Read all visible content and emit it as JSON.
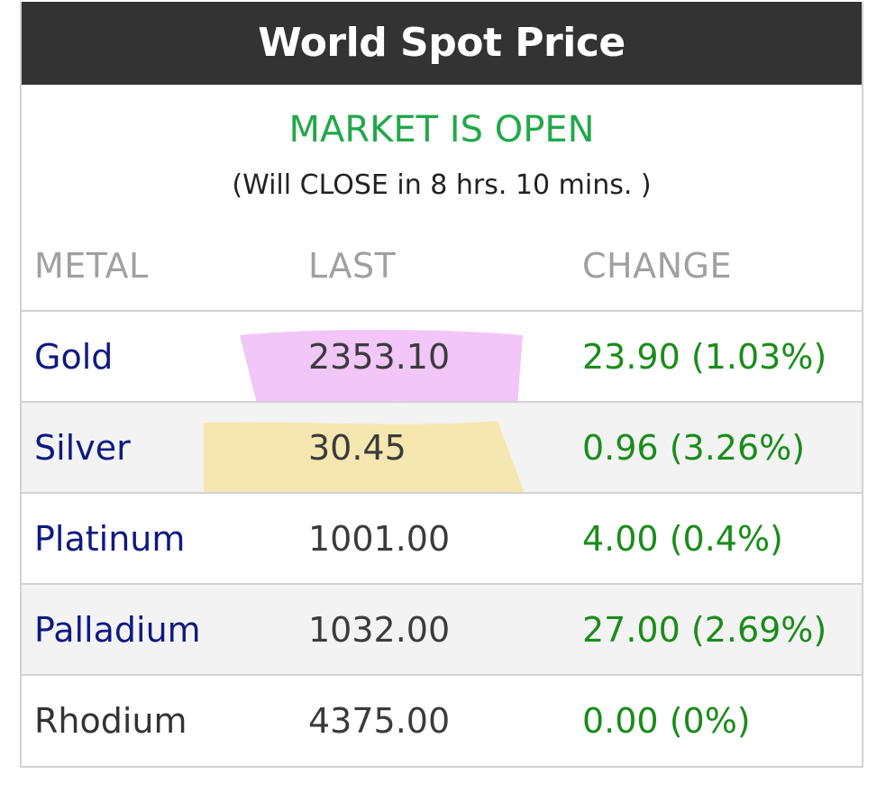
{
  "widget": {
    "title": "World Spot Price",
    "market_status": "MARKET IS OPEN",
    "close_note": "(Will CLOSE in 8 hrs. 10 mins. )",
    "status_color": "#22a84a"
  },
  "table": {
    "headers": {
      "metal": "METAL",
      "last": "LAST",
      "change": "CHANGE"
    },
    "rows": [
      {
        "metal": "Gold",
        "last": "2353.10",
        "change": "23.90 (1.03%)",
        "link": true
      },
      {
        "metal": "Silver",
        "last": "30.45",
        "change": "0.96 (3.26%)",
        "link": true
      },
      {
        "metal": "Platinum",
        "last": "1001.00",
        "change": "4.00 (0.4%)",
        "link": true
      },
      {
        "metal": "Palladium",
        "last": "1032.00",
        "change": "27.00 (2.69%)",
        "link": true
      },
      {
        "metal": "Rhodium",
        "last": "4375.00",
        "change": "0.00 (0%)",
        "link": false
      }
    ]
  },
  "highlights": [
    {
      "target": "gold-last",
      "color": "#f2c6f8"
    },
    {
      "target": "silver-last",
      "color": "#f6e7b0"
    }
  ]
}
